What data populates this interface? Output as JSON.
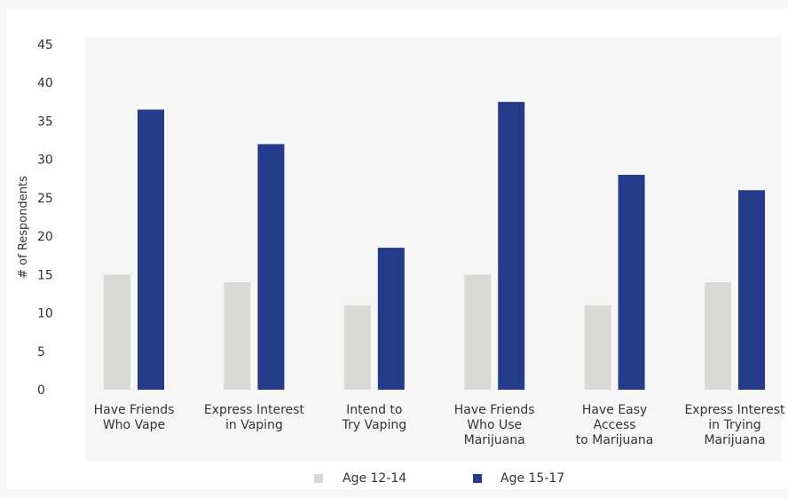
{
  "chart_data": {
    "type": "bar",
    "title": "",
    "xlabel": "",
    "ylabel": "# of Respondents",
    "ylim": [
      0,
      45
    ],
    "yticks": [
      0,
      5,
      10,
      15,
      20,
      25,
      30,
      35,
      40,
      45
    ],
    "grid": false,
    "legend_position": "bottom",
    "categories": [
      [
        "Have Friends",
        "Who Vape"
      ],
      [
        "Express Interest",
        "in Vaping"
      ],
      [
        "Intend to",
        "Try Vaping"
      ],
      [
        "Have Friends",
        "Who Use",
        "Marijuana"
      ],
      [
        "Have Easy",
        "Access",
        "to Marijuana"
      ],
      [
        "Express Interest",
        "in Trying",
        "Marijuana"
      ]
    ],
    "series": [
      {
        "name": "Age 12-14",
        "color": "#d9d9d6",
        "values": [
          15,
          14,
          11,
          15,
          11,
          14
        ]
      },
      {
        "name": "Age 15-17",
        "color": "#243a8a",
        "values": [
          36.5,
          32,
          18.5,
          37.5,
          28,
          26
        ]
      }
    ]
  }
}
